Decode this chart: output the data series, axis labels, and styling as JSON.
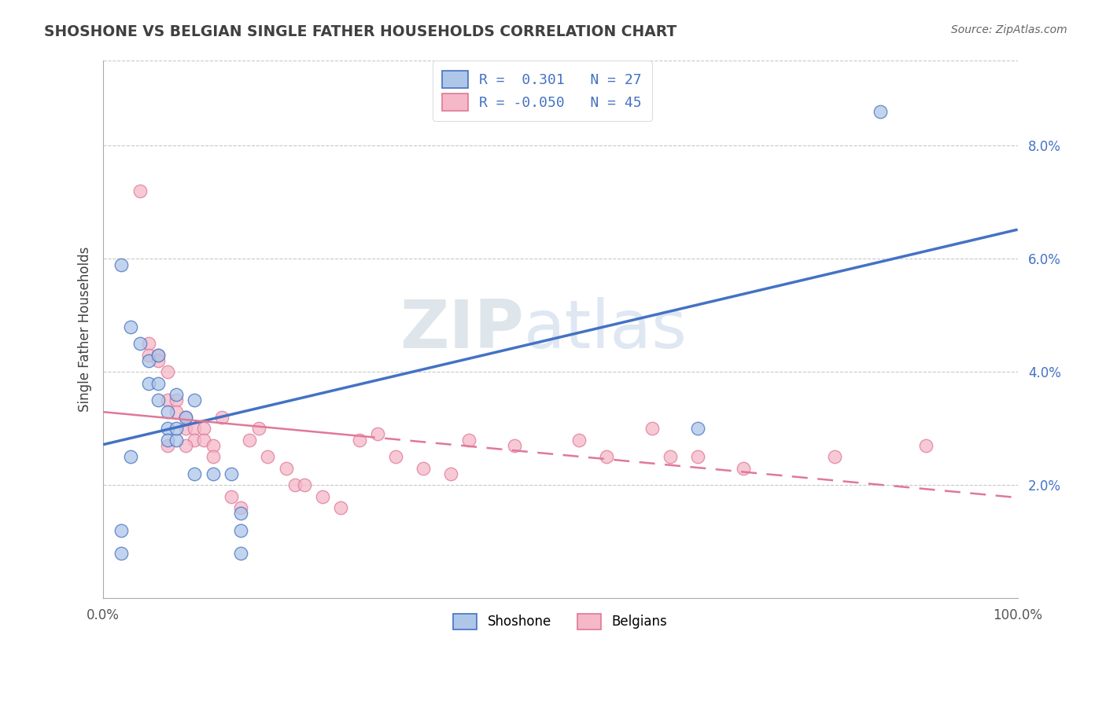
{
  "title": "SHOSHONE VS BELGIAN SINGLE FATHER HOUSEHOLDS CORRELATION CHART",
  "source": "Source: ZipAtlas.com",
  "ylabel": "Single Father Households",
  "xlim": [
    0,
    100
  ],
  "ylim": [
    0,
    9.5
  ],
  "yticks": [
    2.0,
    4.0,
    6.0,
    8.0
  ],
  "legend_r1": "R =  0.301   N = 27",
  "legend_r2": "R = -0.050   N = 45",
  "shoshone_fill": "#aec6e8",
  "shoshone_edge": "#4472c4",
  "belgian_fill": "#f4b8c8",
  "belgian_edge": "#e07898",
  "line_blue": "#4472c4",
  "line_pink": "#e07898",
  "grid_color": "#c8c8c8",
  "watermark_color": "#c8d8ea",
  "text_color": "#4472c4",
  "title_color": "#404040",
  "source_color": "#666666",
  "shoshone_x": [
    2,
    2,
    2,
    3,
    4,
    5,
    5,
    6,
    6,
    7,
    7,
    7,
    8,
    8,
    9,
    10,
    10,
    12,
    14,
    15,
    15,
    15,
    65,
    85,
    3,
    6,
    8
  ],
  "shoshone_y": [
    5.9,
    1.2,
    0.8,
    4.8,
    4.5,
    4.2,
    3.8,
    3.8,
    3.5,
    3.3,
    3.0,
    2.8,
    2.8,
    3.0,
    3.2,
    3.5,
    2.2,
    2.2,
    2.2,
    1.2,
    0.8,
    1.5,
    3.0,
    8.6,
    2.5,
    4.3,
    3.6
  ],
  "belgian_x": [
    4,
    5,
    5,
    6,
    6,
    7,
    7,
    8,
    8,
    9,
    9,
    10,
    10,
    11,
    11,
    12,
    13,
    14,
    15,
    16,
    17,
    18,
    20,
    21,
    22,
    24,
    26,
    28,
    30,
    32,
    35,
    38,
    40,
    45,
    52,
    55,
    60,
    62,
    65,
    70,
    80,
    90,
    7,
    9,
    12
  ],
  "belgian_y": [
    7.2,
    4.5,
    4.3,
    4.3,
    4.2,
    4.0,
    3.5,
    3.5,
    3.3,
    3.2,
    3.0,
    3.0,
    2.8,
    3.0,
    2.8,
    2.7,
    3.2,
    1.8,
    1.6,
    2.8,
    3.0,
    2.5,
    2.3,
    2.0,
    2.0,
    1.8,
    1.6,
    2.8,
    2.9,
    2.5,
    2.3,
    2.2,
    2.8,
    2.7,
    2.8,
    2.5,
    3.0,
    2.5,
    2.5,
    2.3,
    2.5,
    2.7,
    2.7,
    2.7,
    2.5
  ]
}
